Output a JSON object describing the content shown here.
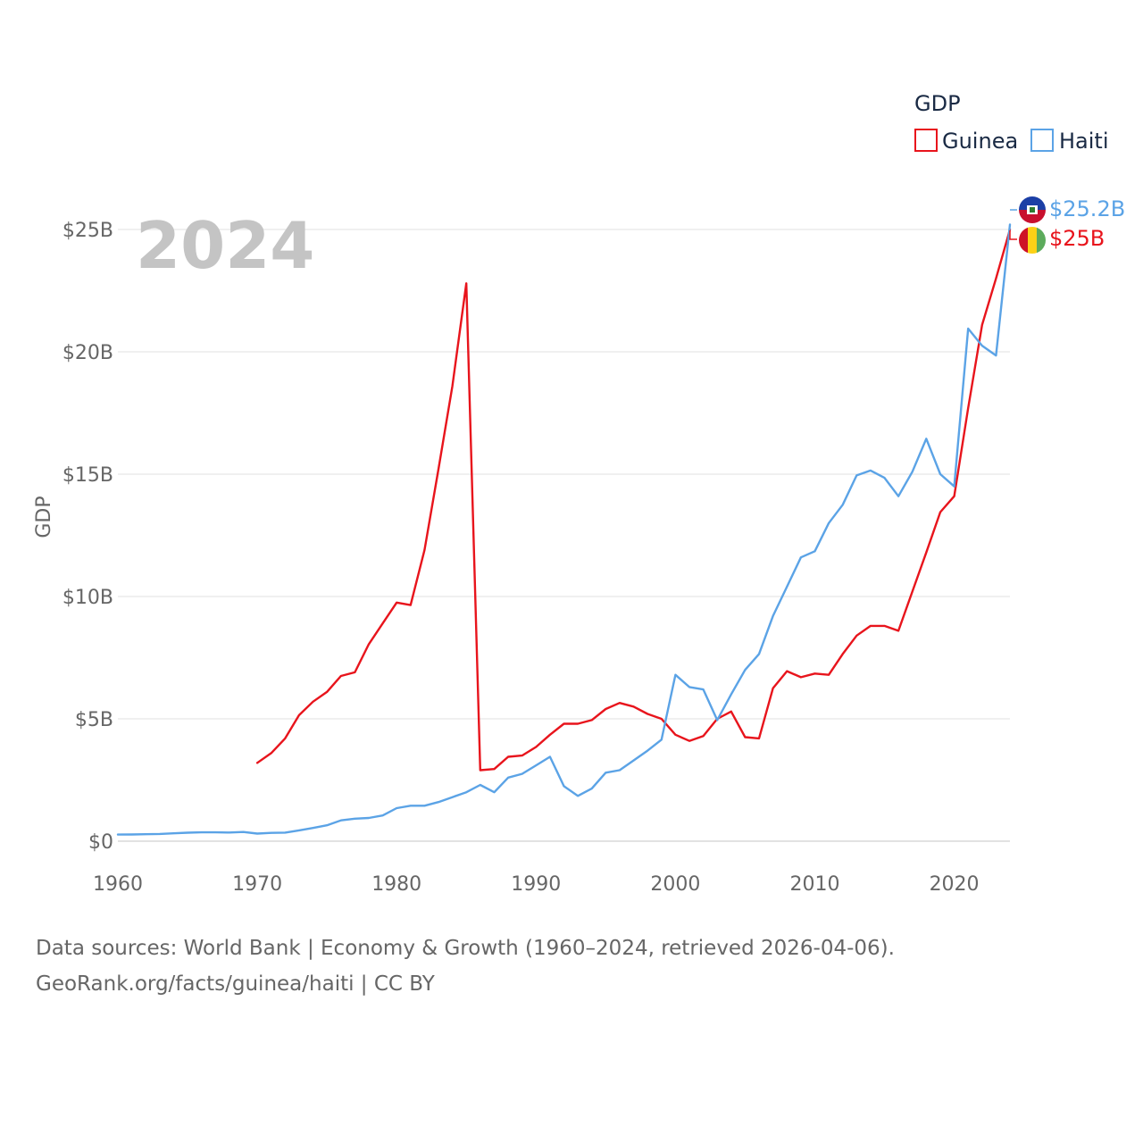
{
  "chart_data": {
    "type": "line",
    "title": "",
    "year_label": "2024",
    "xlabel": "",
    "ylabel": "GDP",
    "xlim": [
      1960,
      2024
    ],
    "ylim": [
      0,
      25000000000
    ],
    "x_ticks": [
      1960,
      1970,
      1980,
      1990,
      2000,
      2010,
      2020
    ],
    "y_ticks": [
      {
        "value": 0,
        "label": "$0"
      },
      {
        "value": 5000000000,
        "label": "$5B"
      },
      {
        "value": 10000000000,
        "label": "$10B"
      },
      {
        "value": 15000000000,
        "label": "$15B"
      },
      {
        "value": 20000000000,
        "label": "$20B"
      },
      {
        "value": 25000000000,
        "label": "$25B"
      }
    ],
    "grid": true,
    "legend": {
      "title": "GDP",
      "position": "top-right"
    },
    "series": [
      {
        "name": "Guinea",
        "color": "#e8141c",
        "end_label": "$25B",
        "flag": "guinea-flag",
        "x": [
          1970,
          1971,
          1972,
          1973,
          1974,
          1975,
          1976,
          1977,
          1978,
          1979,
          1980,
          1981,
          1982,
          1983,
          1984,
          1985,
          1986,
          1987,
          1988,
          1989,
          1990,
          1991,
          1992,
          1993,
          1994,
          1995,
          1996,
          1997,
          1998,
          1999,
          2000,
          2001,
          2002,
          2003,
          2004,
          2005,
          2006,
          2007,
          2008,
          2009,
          2010,
          2011,
          2012,
          2013,
          2014,
          2015,
          2016,
          2017,
          2018,
          2019,
          2020,
          2021,
          2022,
          2023,
          2024
        ],
        "values": [
          3200000000,
          3600000000,
          4200000000,
          5150000000,
          5700000000,
          6100000000,
          6750000000,
          6900000000,
          8050000000,
          8900000000,
          9750000000,
          9650000000,
          11900000000,
          15200000000,
          18600000000,
          22800000000,
          2900000000,
          2950000000,
          3450000000,
          3500000000,
          3850000000,
          4350000000,
          4800000000,
          4800000000,
          4950000000,
          5400000000,
          5650000000,
          5500000000,
          5200000000,
          5000000000,
          4350000000,
          4100000000,
          4300000000,
          5000000000,
          5300000000,
          4250000000,
          4200000000,
          6250000000,
          6950000000,
          6700000000,
          6850000000,
          6800000000,
          7650000000,
          8400000000,
          8800000000,
          8800000000,
          8600000000,
          10200000000,
          11800000000,
          13450000000,
          14100000000,
          17700000000,
          21100000000,
          23000000000,
          25000000000
        ]
      },
      {
        "name": "Haiti",
        "color": "#5ba3e6",
        "end_label": "$25.2B",
        "flag": "haiti-flag",
        "x": [
          1960,
          1961,
          1962,
          1963,
          1964,
          1965,
          1966,
          1967,
          1968,
          1969,
          1970,
          1971,
          1972,
          1973,
          1974,
          1975,
          1976,
          1977,
          1978,
          1979,
          1980,
          1981,
          1982,
          1983,
          1984,
          1985,
          1986,
          1987,
          1988,
          1989,
          1990,
          1991,
          1992,
          1993,
          1994,
          1995,
          1996,
          1997,
          1998,
          1999,
          2000,
          2001,
          2002,
          2003,
          2004,
          2005,
          2006,
          2007,
          2008,
          2009,
          2010,
          2011,
          2012,
          2013,
          2014,
          2015,
          2016,
          2017,
          2018,
          2019,
          2020,
          2021,
          2022,
          2023,
          2024
        ],
        "values": [
          270000000,
          275000000,
          285000000,
          295000000,
          320000000,
          345000000,
          360000000,
          360000000,
          355000000,
          375000000,
          310000000,
          340000000,
          350000000,
          440000000,
          540000000,
          650000000,
          850000000,
          920000000,
          950000000,
          1050000000,
          1350000000,
          1450000000,
          1450000000,
          1600000000,
          1800000000,
          2000000000,
          2300000000,
          2000000000,
          2600000000,
          2750000000,
          3100000000,
          3450000000,
          2250000000,
          1850000000,
          2150000000,
          2800000000,
          2900000000,
          3300000000,
          3700000000,
          4150000000,
          6800000000,
          6300000000,
          6200000000,
          4950000000,
          6000000000,
          7000000000,
          7650000000,
          9200000000,
          10400000000,
          11600000000,
          11850000000,
          13000000000,
          13750000000,
          14950000000,
          15150000000,
          14850000000,
          14100000000,
          15100000000,
          16450000000,
          15000000000,
          14500000000,
          20950000000,
          20250000000,
          19850000000,
          25200000000
        ]
      }
    ]
  },
  "footer": {
    "line1": "Data sources: World Bank | Economy & Growth (1960–2024, retrieved 2026-04-06).",
    "line2": "GeoRank.org/facts/guinea/haiti | CC BY"
  }
}
